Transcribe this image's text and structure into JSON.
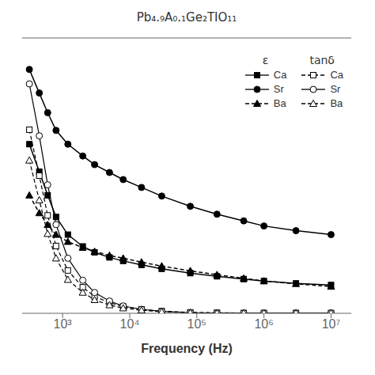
{
  "chart_data": {
    "type": "line",
    "title": "Pb₄.₉A₀.₁Ge₂TIO₁₁",
    "x_label": "Frequency (Hz)",
    "log": "x",
    "xlim": [
      250,
      20000000
    ],
    "xticks": [
      {
        "value": 1000,
        "label": "10³"
      },
      {
        "value": 10000,
        "label": "10⁴"
      },
      {
        "value": 100000,
        "label": "10⁵"
      },
      {
        "value": 1000000,
        "label": "10⁶"
      },
      {
        "value": 10000000,
        "label": "10⁷"
      }
    ],
    "ylim": [
      0,
      700
    ],
    "y2lim": [
      0,
      0.9
    ],
    "tick_labels": "x",
    "grid": false,
    "legend": "upper right",
    "legend_titles": {
      "y": "ε",
      "y2": "tanδ"
    },
    "x": [
      320,
      450,
      600,
      800,
      1200,
      2000,
      3000,
      5000,
      8000,
      15000,
      30000,
      80000,
      200000,
      500000,
      1000000,
      3000000,
      10000000
    ],
    "series": [
      {
        "name": "Ca",
        "axis": "y",
        "color": "#000000",
        "marker": "square",
        "line_style": "solid",
        "values": [
          430,
          360,
          300,
          245,
          200,
          170,
          155,
          142,
          133,
          123,
          113,
          102,
          94,
          87,
          82,
          76,
          72
        ]
      },
      {
        "name": "Sr",
        "axis": "y",
        "color": "#000000",
        "marker": "circle",
        "line_style": "solid",
        "values": [
          620,
          560,
          510,
          465,
          430,
          400,
          378,
          358,
          340,
          320,
          298,
          272,
          252,
          235,
          222,
          210,
          200
        ]
      },
      {
        "name": "Ba",
        "axis": "y",
        "color": "#000000",
        "marker": "triangle",
        "line_style": "dashed",
        "values": [
          300,
          255,
          225,
          200,
          182,
          167,
          157,
          147,
          140,
          130,
          120,
          108,
          98,
          89,
          82,
          75,
          68
        ]
      },
      {
        "name": "Ca",
        "axis": "y2",
        "color": "#000000",
        "marker": "square_open",
        "line_style": "dashed",
        "values": [
          0.6,
          0.45,
          0.32,
          0.22,
          0.14,
          0.085,
          0.055,
          0.035,
          0.022,
          0.013,
          0.007,
          0.003,
          0.002,
          0.001,
          0.001,
          0.001,
          0.001
        ]
      },
      {
        "name": "Sr",
        "axis": "y2",
        "color": "#000000",
        "marker": "circle_open",
        "line_style": "solid",
        "values": [
          0.75,
          0.58,
          0.42,
          0.29,
          0.18,
          0.108,
          0.068,
          0.04,
          0.024,
          0.013,
          0.006,
          0.002,
          0.001,
          0.001,
          0.001,
          0.001,
          0.001
        ]
      },
      {
        "name": "Ba",
        "axis": "y2",
        "color": "#000000",
        "marker": "triangle_open",
        "line_style": "dashed",
        "values": [
          0.5,
          0.37,
          0.26,
          0.18,
          0.11,
          0.068,
          0.044,
          0.027,
          0.017,
          0.01,
          0.005,
          0.002,
          0.001,
          0.001,
          0.001,
          0.001,
          0.001
        ]
      }
    ]
  }
}
